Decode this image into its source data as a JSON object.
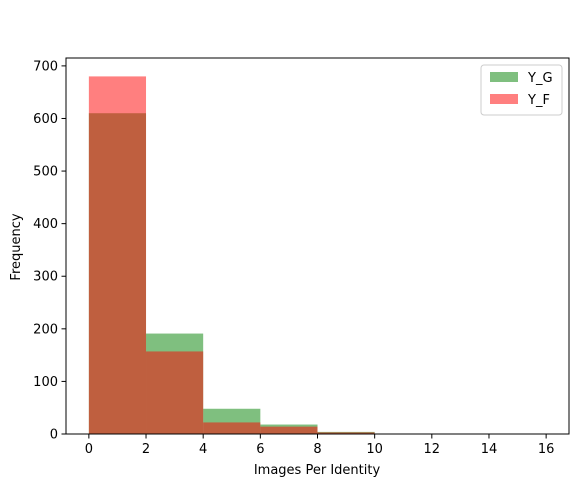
{
  "chart_data": {
    "type": "bar",
    "xlabel": "Images Per Identity",
    "ylabel": "Frequency",
    "xlim": [
      -0.8,
      16.8
    ],
    "ylim": [
      0,
      715
    ],
    "x_ticks": [
      0,
      2,
      4,
      6,
      8,
      10,
      12,
      14,
      16
    ],
    "y_ticks": [
      0,
      100,
      200,
      300,
      400,
      500,
      600,
      700
    ],
    "bins": [
      [
        0,
        2
      ],
      [
        2,
        4
      ],
      [
        4,
        6
      ],
      [
        6,
        8
      ],
      [
        8,
        10
      ],
      [
        10,
        12
      ],
      [
        12,
        14
      ],
      [
        14,
        16
      ]
    ],
    "legend_position": "top-right",
    "series": [
      {
        "name": "Y_G",
        "color": "#008000",
        "alpha": 0.5,
        "values": [
          610,
          191,
          48,
          18,
          4,
          0,
          0,
          0
        ]
      },
      {
        "name": "Y_F",
        "color": "#ff0000",
        "alpha": 0.5,
        "values": [
          680,
          157,
          22,
          14,
          3,
          0,
          0,
          0
        ]
      }
    ]
  }
}
